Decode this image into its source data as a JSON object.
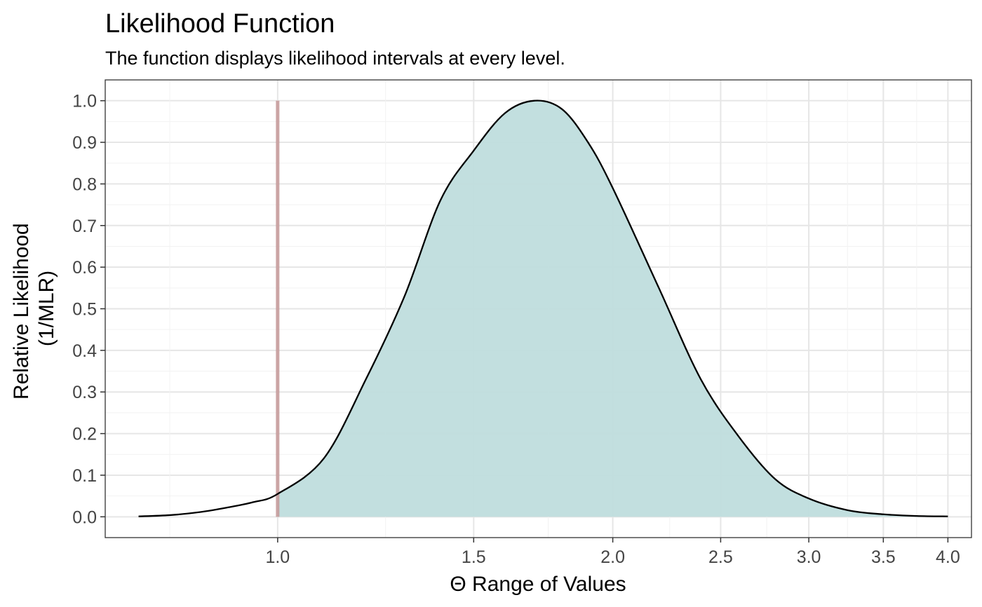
{
  "chart_data": {
    "type": "area",
    "title": "Likelihood Function",
    "subtitle": "The function displays likelihood intervals at every level.",
    "xlabel": "Θ Range of Values",
    "ylabel_lines": [
      "Relative Likelihood",
      "(1/MLR)"
    ],
    "x_scale": "log",
    "xlim": [
      0.7,
      4.2
    ],
    "ylim": [
      -0.05,
      1.05
    ],
    "x_ticks": [
      1.0,
      1.5,
      2.0,
      2.5,
      3.0,
      3.5,
      4.0
    ],
    "x_tick_labels": [
      "1.0",
      "1.5",
      "2.0",
      "2.5",
      "3.0",
      "3.5",
      "4.0"
    ],
    "x_minor_gridlines": [
      0.8,
      1.25,
      1.75,
      2.25,
      2.75,
      3.25,
      3.75
    ],
    "y_ticks": [
      0.0,
      0.1,
      0.2,
      0.3,
      0.4,
      0.5,
      0.6,
      0.7,
      0.8,
      0.9,
      1.0
    ],
    "y_tick_labels": [
      "0.0",
      "0.1",
      "0.2",
      "0.3",
      "0.4",
      "0.5",
      "0.6",
      "0.7",
      "0.8",
      "0.9",
      "1.0"
    ],
    "grid": true,
    "curve": {
      "x": [
        0.75,
        0.8,
        0.85,
        0.9,
        0.95,
        1.0,
        1.1,
        1.2,
        1.3,
        1.4,
        1.5,
        1.6,
        1.7,
        1.8,
        1.9,
        2.0,
        2.2,
        2.4,
        2.6,
        2.8,
        3.0,
        3.25,
        3.5,
        3.75,
        4.0
      ],
      "y": [
        0.001,
        0.004,
        0.011,
        0.022,
        0.035,
        0.055,
        0.14,
        0.33,
        0.53,
        0.76,
        0.88,
        0.97,
        1.0,
        0.98,
        0.9,
        0.79,
        0.55,
        0.33,
        0.19,
        0.09,
        0.044,
        0.016,
        0.006,
        0.002,
        0.001
      ],
      "fill": "#bfdddd",
      "line": "#000000"
    },
    "reference_line": {
      "x": 1.0,
      "y_top": 1.0,
      "color": "#c49898"
    }
  }
}
